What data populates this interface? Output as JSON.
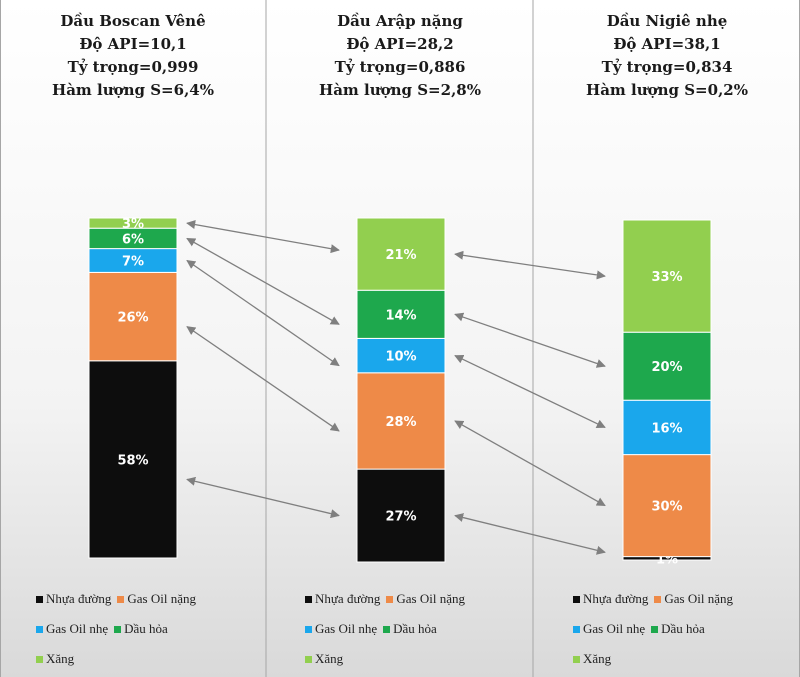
{
  "chart_data": [
    {
      "type": "bar",
      "stacked": true,
      "title": [
        "Dầu Boscan Vênê",
        "Độ API=10,1",
        "Tỷ trọng=0,999",
        "Hàm lượng S=6,4%"
      ],
      "segments": [
        {
          "series": "Nhựa đường",
          "value": 58,
          "label": "58%"
        },
        {
          "series": "Gas Oil nặng",
          "value": 26,
          "label": "26%"
        },
        {
          "series": "Gas Oil nhẹ",
          "value": 7,
          "label": "7%"
        },
        {
          "series": "Dầu hỏa",
          "value": 6,
          "label": "6%"
        },
        {
          "series": "Xăng",
          "value": 3,
          "label": "3%"
        }
      ],
      "legend": [
        "Nhựa đường",
        "Gas Oil nặng",
        "Gas Oil nhẹ",
        "Dầu hỏa",
        "Xăng"
      ]
    },
    {
      "type": "bar",
      "stacked": true,
      "title": [
        "Dầu Arập nặng",
        "Độ API=28,2",
        "Tỷ trọng=0,886",
        "Hàm lượng S=2,8%"
      ],
      "segments": [
        {
          "series": "Nhựa đường",
          "value": 27,
          "label": "27%"
        },
        {
          "series": "Gas Oil nặng",
          "value": 28,
          "label": "28%"
        },
        {
          "series": "Gas Oil nhẹ",
          "value": 10,
          "label": "10%"
        },
        {
          "series": "Dầu hỏa",
          "value": 14,
          "label": "14%"
        },
        {
          "series": "Xăng",
          "value": 21,
          "label": "21%"
        }
      ],
      "legend": [
        "Nhựa đường",
        "Gas Oil nặng",
        "Gas Oil nhẹ",
        "Dầu hỏa",
        "Xăng"
      ]
    },
    {
      "type": "bar",
      "stacked": true,
      "title": [
        "Dầu Nigiê nhẹ",
        "Độ API=38,1",
        "Tỷ trọng=0,834",
        "Hàm lượng S=0,2%"
      ],
      "segments": [
        {
          "series": "Nhựa đường",
          "value": 1,
          "label": "1%"
        },
        {
          "series": "Gas Oil nặng",
          "value": 30,
          "label": "30%"
        },
        {
          "series": "Gas Oil nhẹ",
          "value": 16,
          "label": "16%"
        },
        {
          "series": "Dầu hỏa",
          "value": 20,
          "label": "20%"
        },
        {
          "series": "Xăng",
          "value": 33,
          "label": "33%"
        }
      ],
      "legend": [
        "Nhựa đường",
        "Gas Oil nặng",
        "Gas Oil nhẹ",
        "Dầu hỏa",
        "Xăng"
      ]
    }
  ],
  "colors": {
    "Nhựa đường": "#0d0d0d",
    "Gas Oil nặng": "#ee8a48",
    "Gas Oil nhẹ": "#1aa7ec",
    "Dầu hỏa": "#1ea84d",
    "Xăng": "#92cf4f"
  }
}
